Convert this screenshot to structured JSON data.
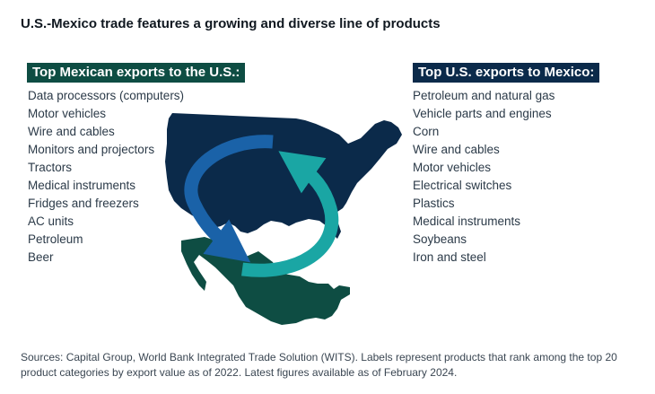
{
  "title": "U.S.-Mexico trade features a growing and diverse line of products",
  "colors": {
    "mexico_green": "#0e4d43",
    "us_navy": "#0b2a4a",
    "arrow_blue": "#1a62a8",
    "arrow_teal": "#1aa6a4"
  },
  "mexican_exports": {
    "heading": "Top Mexican exports to the U.S.:",
    "items": [
      "Data processors (computers)",
      "Motor vehicles",
      "Wire and cables",
      "Monitors and projectors",
      "Tractors",
      "Medical instruments",
      "Fridges and freezers",
      "AC units",
      "Petroleum",
      "Beer"
    ]
  },
  "us_exports": {
    "heading": "Top U.S. exports to Mexico:",
    "items": [
      "Petroleum and natural gas",
      "Vehicle parts and engines",
      "Corn",
      "Wire and cables",
      "Motor vehicles",
      "Electrical switches",
      "Plastics",
      "Medical instruments",
      "Soybeans",
      "Iron and steel"
    ]
  },
  "map": {
    "us_icon": "us-map-icon",
    "mexico_icon": "mexico-map-icon"
  },
  "sources": "Sources: Capital Group, World Bank Integrated Trade Solution (WITS). Labels represent products that rank among the top 20 product categories by export value as of 2022. Latest figures available as of February 2024."
}
